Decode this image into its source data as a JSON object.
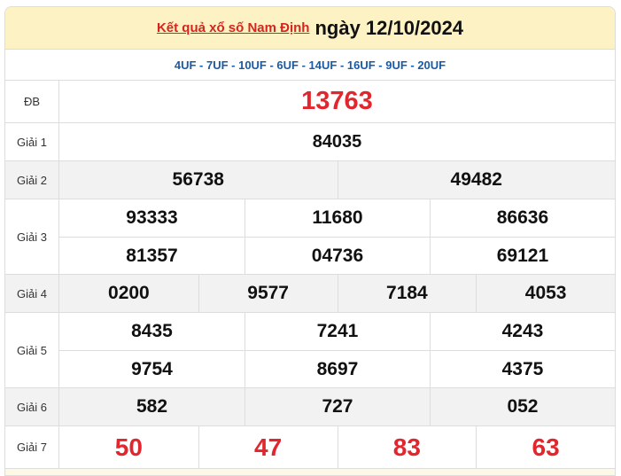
{
  "header": {
    "link": "Kết quả xổ số Nam Định",
    "date": "ngày 12/10/2024"
  },
  "codes": "4UF - 7UF - 10UF - 6UF - 14UF - 16UF - 9UF - 20UF",
  "prizes": {
    "db": {
      "label": "ĐB",
      "values": [
        "13763"
      ]
    },
    "g1": {
      "label": "Giải 1",
      "values": [
        "84035"
      ]
    },
    "g2": {
      "label": "Giải 2",
      "values": [
        "56738",
        "49482"
      ]
    },
    "g3": {
      "label": "Giải 3",
      "values": [
        "93333",
        "11680",
        "86636",
        "81357",
        "04736",
        "69121"
      ]
    },
    "g4": {
      "label": "Giải 4",
      "values": [
        "0200",
        "9577",
        "7184",
        "4053"
      ]
    },
    "g5": {
      "label": "Giải 5",
      "values": [
        "8435",
        "7241",
        "4243",
        "9754",
        "8697",
        "4375"
      ]
    },
    "g6": {
      "label": "Giải 6",
      "values": [
        "582",
        "727",
        "052"
      ]
    },
    "g7": {
      "label": "Giải 7",
      "values": [
        "50",
        "47",
        "83",
        "63"
      ]
    }
  },
  "colors": {
    "header_bg": "#fdf2c3",
    "red": "#e2262e",
    "code_blue": "#1a5aa6",
    "gray_row": "#f2f2f2"
  }
}
